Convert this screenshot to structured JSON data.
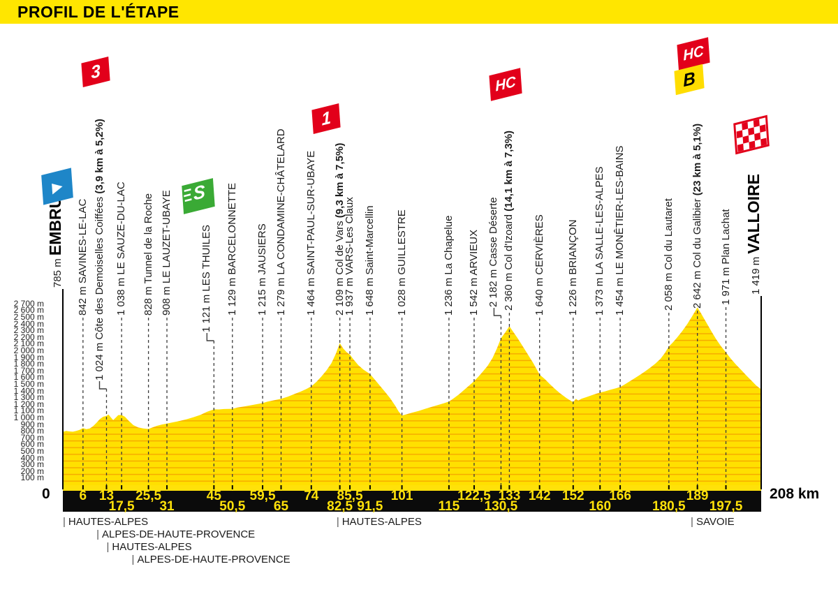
{
  "banner": {
    "title": "PROFIL DE L'ÉTAPE"
  },
  "colors": {
    "banner_yellow": "#FFE600",
    "profile_yellow": "#FFE000",
    "hatch_orange": "#F6A800",
    "category_red": "#E2001A",
    "sprint_green": "#3AAA35",
    "start_blue": "#1E86C8",
    "bonus_yellow": "#FFDD00",
    "axis_bar_black": "#0B0B0B",
    "axis_number_yellow": "#FFE10A"
  },
  "badge_glyphs": {
    "cat3": "3",
    "cat1": "1",
    "hc": "HC",
    "bonus": "B",
    "sprint": "S",
    "start": "▶"
  },
  "chart_data": {
    "type": "area",
    "title": "Stage profile Embrun - Valloire",
    "x_unit": "km",
    "x_range": [
      0,
      208
    ],
    "y_unit": "m",
    "y_range": [
      0,
      2700
    ],
    "origin_label": "0",
    "total_label": "208 km",
    "y_ticks": [
      "2 700 m",
      "2 600 m",
      "2 500 m",
      "2 400 m",
      "2 300 m",
      "2 200 m",
      "2 100 m",
      "2 000 m",
      "1 900 m",
      "1 800 m",
      "1 700 m",
      "1 600 m",
      "1 500 m",
      "1 400 m",
      "1 300 m",
      "1 200 m",
      "1 100 m",
      "1 000 m",
      "900 m",
      "800 m",
      "700 m",
      "600 m",
      "500 m",
      "400 m",
      "300 m",
      "200 m",
      "100 m"
    ],
    "waypoints": [
      {
        "km": 0,
        "elevation": 785,
        "elevation_label": "785 m",
        "name": "EMBRUN",
        "type": "start",
        "badge": "start",
        "line": "solid"
      },
      {
        "km": 6,
        "km_label": "6",
        "axis_row": 1,
        "elevation": 842,
        "elevation_label": "842 m",
        "name": "SAVINES-LE-LAC"
      },
      {
        "km": 13,
        "km_label": "13",
        "axis_row": 1,
        "elevation": 1024,
        "elevation_label": "1 024 m",
        "name": "Côte des Demoiselles Coiffées",
        "bold_suffix": "(3,9 km à 5,2%)",
        "badge": "cat3",
        "elbow": true
      },
      {
        "km": 17.5,
        "km_label": "17,5",
        "axis_row": 2,
        "elevation": 1038,
        "elevation_label": "1 038 m",
        "name": "LE SAUZE-DU-LAC"
      },
      {
        "km": 25.5,
        "km_label": "25,5",
        "axis_row": 1,
        "elevation": 828,
        "elevation_label": "828 m",
        "name": "Tunnel de la Roche"
      },
      {
        "km": 31,
        "km_label": "31",
        "axis_row": 2,
        "elevation": 908,
        "elevation_label": "908 m",
        "name": "LE LAUZET-UBAYE"
      },
      {
        "km": 45,
        "km_label": "45",
        "axis_row": 1,
        "elevation": 1121,
        "elevation_label": "1 121 m",
        "name": "LES THUILES",
        "badge": "sprint",
        "elbow": true
      },
      {
        "km": 50.5,
        "km_label": "50,5",
        "axis_row": 2,
        "elevation": 1129,
        "elevation_label": "1 129 m",
        "name": "BARCELONNETTE"
      },
      {
        "km": 59.5,
        "km_label": "59,5",
        "axis_row": 1,
        "elevation": 1215,
        "elevation_label": "1 215 m",
        "name": "JAUSIERS"
      },
      {
        "km": 65,
        "km_label": "65",
        "axis_row": 2,
        "elevation": 1279,
        "elevation_label": "1 279 m",
        "name": "LA CONDAMINE-CHÂTELARD"
      },
      {
        "km": 74,
        "km_label": "74",
        "axis_row": 1,
        "elevation": 1464,
        "elevation_label": "1 464 m",
        "name": "SAINT-PAUL-SUR-UBAYE"
      },
      {
        "km": 82.5,
        "km_label": "82,5",
        "axis_row": 2,
        "elevation": 2109,
        "elevation_label": "2 109 m",
        "name": "Col de Vars",
        "bold_suffix": "(9,3 km à 7,5%)",
        "badge": "cat1"
      },
      {
        "km": 85.5,
        "km_label": "85,5",
        "axis_row": 1,
        "elevation": 1937,
        "elevation_label": "1 937 m",
        "name": "VARS-Les Claux"
      },
      {
        "km": 91.5,
        "km_label": "91,5",
        "axis_row": 2,
        "elevation": 1648,
        "elevation_label": "1 648 m",
        "name": "Saint-Marcellin"
      },
      {
        "km": 101,
        "km_label": "101",
        "axis_row": 1,
        "elevation": 1028,
        "elevation_label": "1 028 m",
        "name": "GUILLESTRE"
      },
      {
        "km": 115,
        "km_label": "115",
        "axis_row": 2,
        "elevation": 1236,
        "elevation_label": "1 236 m",
        "name": "La Chapelue"
      },
      {
        "km": 122.5,
        "km_label": "122,5",
        "axis_row": 1,
        "elevation": 1542,
        "elevation_label": "1 542 m",
        "name": "ARVIEUX"
      },
      {
        "km": 130.5,
        "km_label": "130,5",
        "axis_row": 2,
        "elevation": 2182,
        "elevation_label": "2 182 m",
        "name": "Casse Déserte",
        "elbow": true
      },
      {
        "km": 133,
        "km_label": "133",
        "axis_row": 1,
        "elevation": 2360,
        "elevation_label": "2 360 m",
        "name": "Col d'Izoard",
        "bold_suffix": "(14,1 km à 7,3%)",
        "badge": "hc"
      },
      {
        "km": 142,
        "km_label": "142",
        "axis_row": 1,
        "elevation": 1640,
        "elevation_label": "1 640 m",
        "name": "CERVIÈRES"
      },
      {
        "km": 152,
        "km_label": "152",
        "axis_row": 1,
        "elevation": 1226,
        "elevation_label": "1 226 m",
        "name": "BRIANÇON"
      },
      {
        "km": 160,
        "km_label": "160",
        "axis_row": 2,
        "elevation": 1373,
        "elevation_label": "1 373 m",
        "name": "LA SALLE-LES-ALPES"
      },
      {
        "km": 166,
        "km_label": "166",
        "axis_row": 1,
        "elevation": 1454,
        "elevation_label": "1 454 m",
        "name": "LE MONÊTIER-LES-BAINS"
      },
      {
        "km": 180.5,
        "km_label": "180,5",
        "axis_row": 2,
        "elevation": 2058,
        "elevation_label": "2 058 m",
        "name": "Col du Lautaret"
      },
      {
        "km": 189,
        "km_label": "189",
        "axis_row": 1,
        "elevation": 2642,
        "elevation_label": "2 642 m",
        "name": "Col du Galibier",
        "bold_suffix": "(23 km à 5,1%)",
        "badge": "hc_bonus"
      },
      {
        "km": 197.5,
        "km_label": "197,5",
        "axis_row": 2,
        "elevation": 1971,
        "elevation_label": "1 971 m",
        "name": "Plan Lachat"
      },
      {
        "km": 208,
        "elevation": 1419,
        "elevation_label": "1 419 m",
        "name": "VALLOIRE",
        "type": "finish",
        "badge": "finish",
        "line": "solid"
      }
    ],
    "departments": [
      {
        "label": "HAUTES-ALPES",
        "km": 0,
        "row": 1
      },
      {
        "label": "ALPES-DE-HAUTE-PROVENCE",
        "km": 10,
        "row": 2
      },
      {
        "label": "HAUTES-ALPES",
        "km": 13,
        "row": 3
      },
      {
        "label": "ALPES-DE-HAUTE-PROVENCE",
        "km": 20.5,
        "row": 4
      },
      {
        "label": "HAUTES-ALPES",
        "km": 81.5,
        "row": 1
      },
      {
        "label": "SAVOIE",
        "km": 187,
        "row": 1
      }
    ],
    "profile": [
      [
        0,
        785
      ],
      [
        1,
        800
      ],
      [
        2,
        792
      ],
      [
        3,
        788
      ],
      [
        4,
        800
      ],
      [
        5,
        815
      ],
      [
        6,
        842
      ],
      [
        7,
        825
      ],
      [
        8,
        835
      ],
      [
        9,
        870
      ],
      [
        10,
        920
      ],
      [
        11,
        975
      ],
      [
        12,
        1010
      ],
      [
        13,
        1024
      ],
      [
        13.6,
        1045
      ],
      [
        14.3,
        1000
      ],
      [
        15,
        960
      ],
      [
        15.8,
        1000
      ],
      [
        16.5,
        1035
      ],
      [
        17.5,
        1038
      ],
      [
        18.5,
        1010
      ],
      [
        19.5,
        955
      ],
      [
        21,
        885
      ],
      [
        22.5,
        850
      ],
      [
        24,
        835
      ],
      [
        25.5,
        828
      ],
      [
        26.5,
        848
      ],
      [
        28,
        875
      ],
      [
        29.5,
        895
      ],
      [
        31,
        908
      ],
      [
        33,
        930
      ],
      [
        35,
        950
      ],
      [
        37,
        975
      ],
      [
        39,
        1005
      ],
      [
        41,
        1040
      ],
      [
        43,
        1085
      ],
      [
        45,
        1121
      ],
      [
        46.5,
        1120
      ],
      [
        48,
        1126
      ],
      [
        50.5,
        1129
      ],
      [
        52,
        1148
      ],
      [
        54,
        1165
      ],
      [
        56,
        1182
      ],
      [
        58,
        1200
      ],
      [
        59.5,
        1215
      ],
      [
        61,
        1238
      ],
      [
        63,
        1258
      ],
      [
        65,
        1279
      ],
      [
        67,
        1310
      ],
      [
        69,
        1350
      ],
      [
        71,
        1390
      ],
      [
        72.5,
        1425
      ],
      [
        74,
        1464
      ],
      [
        75.5,
        1530
      ],
      [
        77,
        1610
      ],
      [
        78.5,
        1700
      ],
      [
        80,
        1810
      ],
      [
        81.3,
        1950
      ],
      [
        82.5,
        2109
      ],
      [
        83.5,
        2030
      ],
      [
        84.5,
        1975
      ],
      [
        85.5,
        1937
      ],
      [
        86.5,
        1870
      ],
      [
        88,
        1780
      ],
      [
        89.5,
        1715
      ],
      [
        91.5,
        1648
      ],
      [
        93,
        1560
      ],
      [
        94.5,
        1470
      ],
      [
        96,
        1380
      ],
      [
        97.5,
        1285
      ],
      [
        99,
        1175
      ],
      [
        100,
        1090
      ],
      [
        101,
        1028
      ],
      [
        102.5,
        1050
      ],
      [
        104,
        1072
      ],
      [
        106,
        1098
      ],
      [
        108,
        1130
      ],
      [
        110,
        1160
      ],
      [
        112,
        1190
      ],
      [
        113.5,
        1212
      ],
      [
        115,
        1236
      ],
      [
        116.5,
        1290
      ],
      [
        118,
        1345
      ],
      [
        119.5,
        1410
      ],
      [
        121,
        1475
      ],
      [
        122.5,
        1542
      ],
      [
        123.8,
        1610
      ],
      [
        125,
        1680
      ],
      [
        126.5,
        1770
      ],
      [
        128,
        1890
      ],
      [
        129.3,
        2030
      ],
      [
        130.5,
        2182
      ],
      [
        131.7,
        2265
      ],
      [
        133,
        2360
      ],
      [
        134,
        2290
      ],
      [
        135.5,
        2180
      ],
      [
        137,
        2060
      ],
      [
        138.5,
        1940
      ],
      [
        140,
        1820
      ],
      [
        141,
        1730
      ],
      [
        142,
        1640
      ],
      [
        143.5,
        1575
      ],
      [
        145,
        1500
      ],
      [
        146.5,
        1430
      ],
      [
        148,
        1365
      ],
      [
        150,
        1290
      ],
      [
        152,
        1226
      ],
      [
        152.8,
        1278
      ],
      [
        153.5,
        1252
      ],
      [
        154.5,
        1280
      ],
      [
        156,
        1305
      ],
      [
        158,
        1340
      ],
      [
        160,
        1373
      ],
      [
        161.5,
        1390
      ],
      [
        163,
        1412
      ],
      [
        164.5,
        1432
      ],
      [
        166,
        1454
      ],
      [
        167.5,
        1498
      ],
      [
        169,
        1545
      ],
      [
        170.5,
        1592
      ],
      [
        172,
        1640
      ],
      [
        173.5,
        1690
      ],
      [
        175,
        1745
      ],
      [
        176.5,
        1805
      ],
      [
        178,
        1875
      ],
      [
        179.3,
        1960
      ],
      [
        180.5,
        2058
      ],
      [
        181.8,
        2125
      ],
      [
        183,
        2195
      ],
      [
        184.5,
        2290
      ],
      [
        186,
        2395
      ],
      [
        187.5,
        2515
      ],
      [
        189,
        2642
      ],
      [
        190,
        2560
      ],
      [
        191.5,
        2430
      ],
      [
        193,
        2300
      ],
      [
        194.5,
        2175
      ],
      [
        196,
        2065
      ],
      [
        197.5,
        1971
      ],
      [
        199,
        1875
      ],
      [
        200.5,
        1790
      ],
      [
        202,
        1710
      ],
      [
        203.5,
        1630
      ],
      [
        205,
        1555
      ],
      [
        206.5,
        1478
      ],
      [
        208,
        1419
      ]
    ]
  }
}
